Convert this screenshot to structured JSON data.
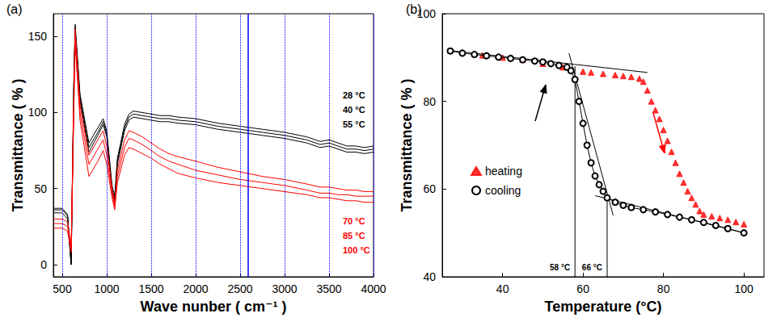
{
  "chart_data": [
    {
      "type": "line",
      "panel_label": "(a)",
      "x_label": "Wave nunber ( cm⁻¹ )",
      "y_label": "Transmittance ( % )",
      "xlim": [
        400,
        4000
      ],
      "xticks": [
        500,
        1000,
        1500,
        2000,
        2500,
        3000,
        3500,
        4000
      ],
      "ylim": [
        -8,
        165
      ],
      "yticks": [
        0,
        50,
        100,
        150
      ],
      "grid": true,
      "reference_line": {
        "x": 2590,
        "color": "#0000ff"
      },
      "x": [
        400,
        500,
        560,
        600,
        630,
        645,
        700,
        800,
        900,
        960,
        1000,
        1060,
        1090,
        1120,
        1200,
        1250,
        1300,
        1400,
        1500,
        1600,
        1700,
        1800,
        2000,
        2250,
        2500,
        2750,
        3000,
        3250,
        3400,
        3500,
        3600,
        3700,
        3800,
        3900,
        4000
      ],
      "series": [
        {
          "name": "28 °C",
          "color": "#000000",
          "marker": "none",
          "line_style": "solid",
          "values": [
            37,
            37,
            33,
            0,
            120,
            158,
            112,
            80,
            90,
            96,
            88,
            52,
            45,
            70,
            92,
            99,
            101,
            100,
            99,
            98,
            98,
            97,
            96,
            93,
            91,
            89,
            87,
            84,
            81,
            82,
            80,
            78,
            78,
            77,
            78
          ]
        },
        {
          "name": "40 °C",
          "color": "#000000",
          "marker": "none",
          "line_style": "solid",
          "values": [
            36,
            36,
            32,
            0,
            118,
            156,
            110,
            77,
            87,
            94,
            86,
            50,
            43,
            68,
            90,
            97,
            99,
            98,
            97,
            96,
            96,
            95,
            94,
            91,
            89,
            87,
            85,
            82,
            79,
            80,
            78,
            76,
            76,
            75,
            76
          ]
        },
        {
          "name": "55 °C",
          "color": "#000000",
          "marker": "none",
          "line_style": "solid",
          "values": [
            34,
            34,
            30,
            0,
            116,
            154,
            108,
            74,
            85,
            92,
            84,
            48,
            41,
            66,
            88,
            95,
            97,
            96,
            95,
            94,
            94,
            93,
            92,
            89,
            87,
            85,
            83,
            80,
            77,
            78,
            76,
            74,
            74,
            73,
            74
          ]
        },
        {
          "name": "70 °C",
          "color": "#ff0000",
          "marker": "none",
          "line_style": "solid",
          "values": [
            30,
            30,
            28,
            12,
            110,
            155,
            105,
            72,
            82,
            88,
            78,
            50,
            40,
            62,
            82,
            88,
            87,
            84,
            80,
            76,
            73,
            71,
            68,
            64,
            61,
            58,
            56,
            53,
            51,
            51,
            50,
            49,
            49,
            48,
            48
          ]
        },
        {
          "name": "85 °C",
          "color": "#ff0000",
          "marker": "none",
          "line_style": "solid",
          "values": [
            27,
            27,
            25,
            10,
            105,
            150,
            100,
            66,
            76,
            82,
            72,
            47,
            38,
            58,
            77,
            83,
            82,
            79,
            75,
            71,
            68,
            66,
            62,
            59,
            56,
            54,
            52,
            49,
            47,
            47,
            46,
            46,
            45,
            45,
            45
          ]
        },
        {
          "name": "100 °C",
          "color": "#ff0000",
          "marker": "none",
          "line_style": "solid",
          "values": [
            24,
            24,
            22,
            8,
            100,
            145,
            95,
            58,
            68,
            75,
            66,
            44,
            36,
            54,
            72,
            77,
            76,
            73,
            70,
            66,
            63,
            60,
            57,
            54,
            52,
            50,
            48,
            46,
            44,
            44,
            43,
            42,
            42,
            41,
            41
          ]
        }
      ]
    },
    {
      "type": "scatter",
      "panel_label": "(b)",
      "x_label": "Temperature (°C)",
      "y_label": "Transmittance ( % )",
      "xlim": [
        25,
        105
      ],
      "xticks": [
        40,
        60,
        80,
        100
      ],
      "ylim": [
        40,
        100
      ],
      "yticks": [
        40,
        60,
        80,
        100
      ],
      "grid": false,
      "legend": "left",
      "series": [
        {
          "name": "heating",
          "color": "#ff0000",
          "marker": "triangle",
          "line_style": "none",
          "x": [
            30,
            35,
            40,
            45,
            50,
            55,
            60,
            62,
            65,
            68,
            70,
            72,
            74,
            75,
            76,
            77,
            78,
            79,
            80,
            81,
            82,
            83,
            84,
            85,
            86,
            87,
            88,
            89,
            90,
            92,
            94,
            96,
            98,
            100
          ],
          "values": [
            91.2,
            90.5,
            90,
            89.5,
            88.6,
            87.8,
            86.8,
            86.6,
            86.3,
            86,
            85.8,
            85.6,
            85.2,
            84.5,
            82.5,
            80,
            78,
            76,
            73.5,
            71,
            68.5,
            66,
            63.5,
            61.5,
            59.5,
            58,
            56.5,
            55,
            54.2,
            53.8,
            53.4,
            53,
            52.5,
            52
          ]
        },
        {
          "name": "cooling",
          "color": "#000000",
          "marker": "circle",
          "line_style": "solid",
          "x": [
            27,
            30,
            33,
            36,
            39,
            42,
            45,
            48,
            50,
            52,
            54,
            56,
            57,
            58,
            59,
            60,
            61,
            62,
            63,
            64,
            65,
            66,
            68,
            70,
            72,
            75,
            78,
            81,
            84,
            87,
            90,
            93,
            96,
            100
          ],
          "values": [
            91.5,
            91,
            90.7,
            90.4,
            90.1,
            89.8,
            89.5,
            89.2,
            89,
            88.6,
            88.2,
            87.8,
            87,
            85,
            80,
            75,
            70,
            66,
            63,
            61,
            59.5,
            58,
            57,
            56.3,
            55.8,
            55.3,
            54.8,
            54.2,
            53.6,
            53,
            52.4,
            51.7,
            51,
            50
          ]
        }
      ],
      "fit_lines": [
        {
          "x": [
            27,
            76
          ],
          "values": [
            91.6,
            86.6
          ]
        },
        {
          "x": [
            56.5,
            67.5
          ],
          "values": [
            91,
            54
          ]
        },
        {
          "x": [
            63,
            100
          ],
          "values": [
            58.5,
            50
          ]
        }
      ],
      "markers": [
        {
          "x": 58,
          "y": [
            40,
            88
          ],
          "label": "58 °C"
        },
        {
          "x": 66,
          "y": [
            40,
            57.5
          ],
          "label": "66 °C"
        }
      ]
    }
  ]
}
